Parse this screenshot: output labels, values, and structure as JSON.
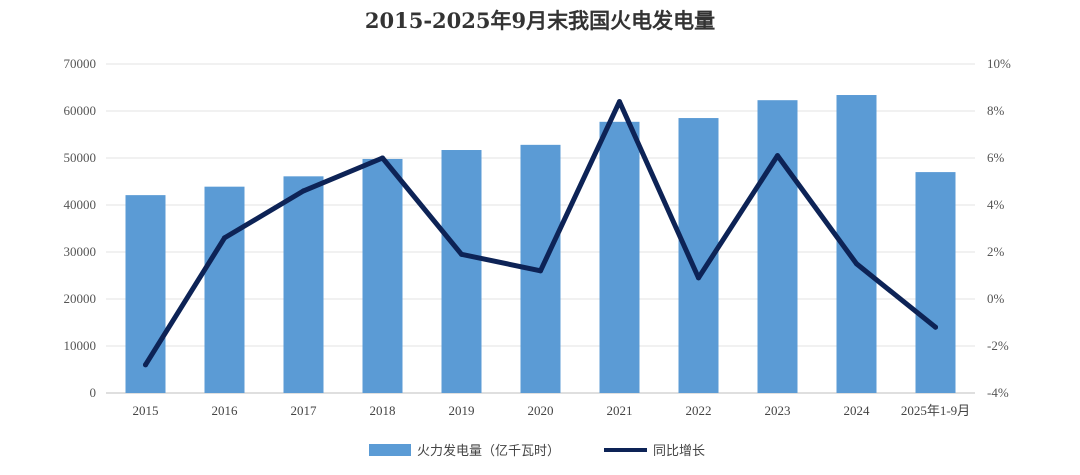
{
  "chart_data": {
    "type": "bar",
    "title": "2015-2025年9月末我国火电发电量",
    "categories": [
      "2015",
      "2016",
      "2017",
      "2018",
      "2019",
      "2020",
      "2021",
      "2022",
      "2023",
      "2024",
      "2025年1-9月"
    ],
    "series": [
      {
        "name": "火力发电量（亿千瓦时）",
        "type": "bar",
        "axis": "left",
        "color": "#5b9bd5",
        "values": [
          42100,
          43900,
          46100,
          49800,
          51700,
          52800,
          57700,
          58500,
          62300,
          63400,
          47000
        ]
      },
      {
        "name": "同比增长",
        "type": "line",
        "axis": "right",
        "color": "#0d2356",
        "values": [
          -2.8,
          2.6,
          4.6,
          6.0,
          1.9,
          1.2,
          8.4,
          0.9,
          6.1,
          1.5,
          -1.2
        ]
      }
    ],
    "y_left": {
      "min": 0,
      "max": 70000,
      "step": 10000,
      "ticks": [
        "0",
        "10000",
        "20000",
        "30000",
        "40000",
        "50000",
        "60000",
        "70000"
      ]
    },
    "y_right": {
      "min": -4,
      "max": 10,
      "step": 2,
      "ticks": [
        "-4%",
        "-2%",
        "0%",
        "2%",
        "4%",
        "6%",
        "8%",
        "10%"
      ]
    },
    "grid": true,
    "legend_position": "bottom"
  }
}
